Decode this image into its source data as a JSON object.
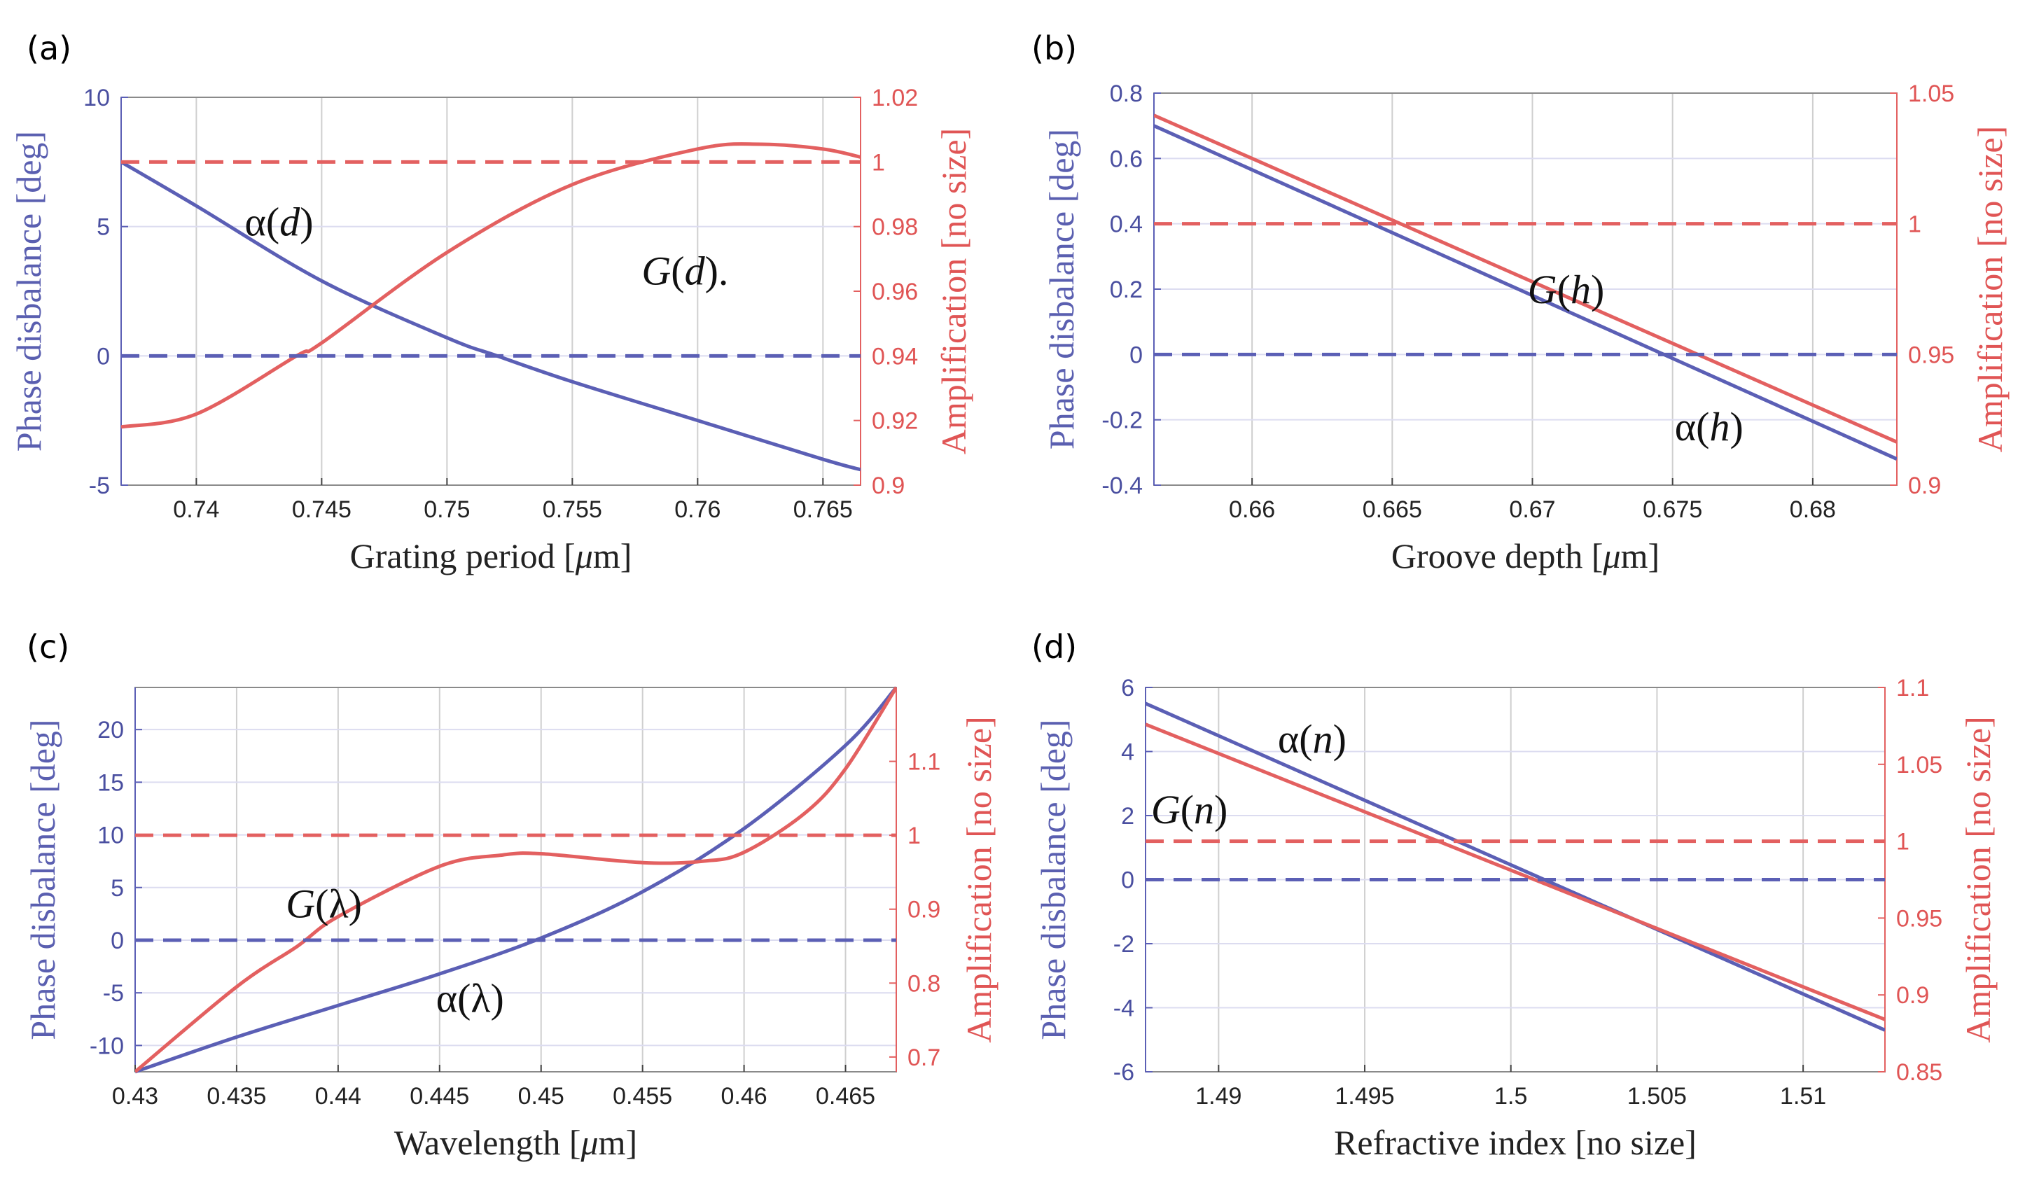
{
  "colors": {
    "left_axis": "#5b5fb5",
    "right_axis": "#e36060",
    "grid_v": "#cfcfcf",
    "grid_h": "#dcdcf0"
  },
  "chart_data": [
    {
      "type": "line",
      "panel_label": "(a)",
      "xlabel": "Grating period [μm]",
      "ylabel_left": "Phase disbalance [deg]",
      "ylabel_right": "Amplification [no size]",
      "xlim": [
        0.737,
        0.7665
      ],
      "ylim_left": [
        -5,
        10
      ],
      "ylim_right": [
        0.9,
        1.02
      ],
      "xticks": [
        0.74,
        0.745,
        0.75,
        0.755,
        0.76,
        0.765
      ],
      "xtick_labels": [
        "0.74",
        "0.745",
        "0.75",
        "0.755",
        "0.76",
        "0.765"
      ],
      "yticks_left": [
        -5,
        0,
        5,
        10
      ],
      "ytick_labels_left": [
        "-5",
        "0",
        "5",
        "10"
      ],
      "yticks_right": [
        0.9,
        0.92,
        0.94,
        0.96,
        0.98,
        1,
        1.02
      ],
      "ytick_labels_right": [
        "0.9",
        "0.92",
        "0.94",
        "0.96",
        "0.98",
        "1",
        "1.02"
      ],
      "series": [
        {
          "name": "α(d)",
          "axis": "left",
          "style": "solid",
          "x": [
            0.737,
            0.74,
            0.745,
            0.75,
            0.752,
            0.755,
            0.76,
            0.765,
            0.7665
          ],
          "y": [
            7.5,
            5.8,
            2.9,
            0.7,
            0.0,
            -1.0,
            -2.5,
            -4.0,
            -4.4
          ]
        },
        {
          "name": "G(d)",
          "axis": "right",
          "style": "solid",
          "x": [
            0.737,
            0.74,
            0.744,
            0.745,
            0.75,
            0.755,
            0.76,
            0.7625,
            0.765,
            0.7665
          ],
          "y": [
            0.918,
            0.922,
            0.94,
            0.944,
            0.972,
            0.993,
            1.004,
            1.0055,
            1.004,
            1.0015
          ]
        },
        {
          "name": "zero",
          "axis": "left",
          "style": "dashed",
          "x": [
            0.737,
            0.7665
          ],
          "y": [
            0,
            0
          ]
        },
        {
          "name": "unity",
          "axis": "right",
          "style": "dashed",
          "x": [
            0.737,
            0.7665
          ],
          "y": [
            1,
            1
          ]
        }
      ],
      "annotations": [
        {
          "text": "α(d)",
          "x": 0.7433,
          "y_left": 5.2
        },
        {
          "text": "G(d).",
          "x": 0.7595,
          "y_left": 3.3
        }
      ]
    },
    {
      "type": "line",
      "panel_label": "(b)",
      "xlabel": "Groove depth [μm]",
      "ylabel_left": "Phase disbalance [deg]",
      "ylabel_right": "Amplification [no size]",
      "xlim": [
        0.6565,
        0.683
      ],
      "ylim_left": [
        -0.4,
        0.8
      ],
      "ylim_right": [
        0.9,
        1.05
      ],
      "xticks": [
        0.66,
        0.665,
        0.67,
        0.675,
        0.68
      ],
      "xtick_labels": [
        "0.66",
        "0.665",
        "0.67",
        "0.675",
        "0.68"
      ],
      "yticks_left": [
        -0.4,
        -0.2,
        0,
        0.2,
        0.4,
        0.6,
        0.8
      ],
      "ytick_labels_left": [
        "-0.4",
        "-0.2",
        "0",
        "0.2",
        "0.4",
        "0.6",
        "0.8"
      ],
      "yticks_right": [
        0.9,
        0.95,
        1,
        1.05
      ],
      "ytick_labels_right": [
        "0.9",
        "0.95",
        "1",
        "1.05"
      ],
      "series": [
        {
          "name": "α(h)",
          "axis": "left",
          "style": "solid",
          "x": [
            0.6565,
            0.683
          ],
          "y": [
            0.7,
            -0.32
          ]
        },
        {
          "name": "G(h)",
          "axis": "right",
          "style": "solid",
          "x": [
            0.6565,
            0.683
          ],
          "y": [
            1.0415,
            0.9165
          ]
        },
        {
          "name": "zero",
          "axis": "left",
          "style": "dashed",
          "x": [
            0.6565,
            0.683
          ],
          "y": [
            0,
            0
          ]
        },
        {
          "name": "unity",
          "axis": "right",
          "style": "dashed",
          "x": [
            0.6565,
            0.683
          ],
          "y": [
            1,
            1
          ]
        }
      ],
      "annotations": [
        {
          "text": "G(h)",
          "x": 0.6712,
          "y_left": 0.2
        },
        {
          "text": "α(h)",
          "x": 0.6763,
          "y_left": -0.22
        }
      ]
    },
    {
      "type": "line",
      "panel_label": "(c)",
      "xlabel": "Wavelength [μm]",
      "ylabel_left": "Phase disbalance [deg]",
      "ylabel_right": "Amplification [no size]",
      "xlim": [
        0.43,
        0.4675
      ],
      "ylim_left": [
        -12.5,
        24
      ],
      "ylim_right": [
        0.68,
        1.2
      ],
      "xticks": [
        0.43,
        0.435,
        0.44,
        0.445,
        0.45,
        0.455,
        0.46,
        0.465
      ],
      "xtick_labels": [
        "0.43",
        "0.435",
        "0.44",
        "0.445",
        "0.45",
        "0.455",
        "0.46",
        "0.465"
      ],
      "yticks_left": [
        -10,
        -5,
        0,
        5,
        10,
        15,
        20
      ],
      "ytick_labels_left": [
        "-10",
        "-5",
        "0",
        "5",
        "10",
        "15",
        "20"
      ],
      "yticks_right": [
        0.7,
        0.8,
        0.9,
        1,
        1.1
      ],
      "ytick_labels_right": [
        "0.7",
        "0.8",
        "0.9",
        "1",
        "1.1"
      ],
      "series": [
        {
          "name": "α(λ)",
          "axis": "left",
          "style": "solid",
          "x": [
            0.43,
            0.435,
            0.44,
            0.445,
            0.45,
            0.455,
            0.46,
            0.465,
            0.4675
          ],
          "y": [
            -12.5,
            -9.2,
            -6.2,
            -3.2,
            0.2,
            4.6,
            10.6,
            18.5,
            24.0
          ]
        },
        {
          "name": "G(λ)",
          "axis": "right",
          "style": "solid",
          "x": [
            0.43,
            0.435,
            0.438,
            0.44,
            0.445,
            0.448,
            0.45,
            0.455,
            0.458,
            0.46,
            0.463,
            0.465,
            0.4675
          ],
          "y": [
            0.68,
            0.795,
            0.85,
            0.89,
            0.958,
            0.973,
            0.975,
            0.963,
            0.965,
            0.977,
            1.03,
            1.09,
            1.2
          ]
        },
        {
          "name": "zero",
          "axis": "left",
          "style": "dashed",
          "x": [
            0.43,
            0.4675
          ],
          "y": [
            0,
            0
          ]
        },
        {
          "name": "unity",
          "axis": "right",
          "style": "dashed",
          "x": [
            0.43,
            0.4675
          ],
          "y": [
            1,
            1
          ]
        }
      ],
      "annotations": [
        {
          "text": "G(λ)",
          "x": 0.4393,
          "y_left": 3.5
        },
        {
          "text": "α(λ)",
          "x": 0.4465,
          "y_left": -5.5
        }
      ]
    },
    {
      "type": "line",
      "panel_label": "(d)",
      "xlabel": "Refractive index [no size]",
      "ylabel_left": "Phase disbalance [deg]",
      "ylabel_right": "Amplification [no size]",
      "xlim": [
        1.4875,
        1.5128
      ],
      "ylim_left": [
        -6,
        6
      ],
      "ylim_right": [
        0.85,
        1.1
      ],
      "xticks": [
        1.49,
        1.495,
        1.5,
        1.505,
        1.51
      ],
      "xtick_labels": [
        "1.49",
        "1.495",
        "1.5",
        "1.505",
        "1.51"
      ],
      "yticks_left": [
        -6,
        -4,
        -2,
        0,
        2,
        4,
        6
      ],
      "ytick_labels_left": [
        "-6",
        "-4",
        "-2",
        "0",
        "2",
        "4",
        "6"
      ],
      "yticks_right": [
        0.85,
        0.9,
        0.95,
        1,
        1.05,
        1.1
      ],
      "ytick_labels_right": [
        "0.85",
        "0.9",
        "0.95",
        "1",
        "1.05",
        "1.1"
      ],
      "series": [
        {
          "name": "α(n)",
          "axis": "left",
          "style": "solid",
          "x": [
            1.4875,
            1.5128
          ],
          "y": [
            5.5,
            -4.7
          ]
        },
        {
          "name": "G(n)",
          "axis": "right",
          "style": "solid",
          "x": [
            1.4875,
            1.5128
          ],
          "y": [
            1.076,
            0.884
          ]
        },
        {
          "name": "zero",
          "axis": "left",
          "style": "dashed",
          "x": [
            1.4875,
            1.5128
          ],
          "y": [
            0,
            0
          ]
        },
        {
          "name": "unity",
          "axis": "right",
          "style": "dashed",
          "x": [
            1.4875,
            1.5128
          ],
          "y": [
            1,
            1
          ]
        }
      ],
      "annotations": [
        {
          "text": "α(n)",
          "x": 1.4932,
          "y_left": 4.4
        },
        {
          "text": "G(n)",
          "x": 1.489,
          "y_left": 2.2
        }
      ]
    }
  ]
}
